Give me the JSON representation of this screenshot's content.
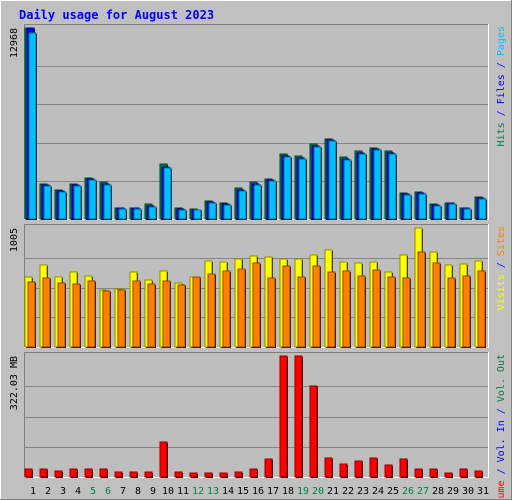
{
  "chart_data": {
    "type": "bar",
    "title": "Daily usage for August 2023",
    "colors": {
      "title": "#0000ff",
      "background": "#c0c0c0",
      "plot_bg": "#bebebe",
      "grid": "#848484",
      "frame_dark": "#808080",
      "frame_light": "#ffffff",
      "hits": "#008040",
      "files": "#0000ff",
      "pages": "#00c0ff",
      "visits": "#ffff00",
      "sites": "#ff8000",
      "kbin": "#ff0000",
      "kbout": "#ff0000",
      "weekend_label": "#008040",
      "weekday_label": "#000000"
    },
    "categories": [
      "1",
      "2",
      "3",
      "4",
      "5",
      "6",
      "7",
      "8",
      "9",
      "10",
      "11",
      "12",
      "13",
      "14",
      "15",
      "16",
      "17",
      "18",
      "19",
      "20",
      "21",
      "22",
      "23",
      "24",
      "25",
      "26",
      "27",
      "28",
      "29",
      "30",
      "31"
    ],
    "weekend_days": [
      5,
      6,
      12,
      13,
      19,
      20,
      26,
      27
    ],
    "panels": [
      {
        "id": "top",
        "max_label": "12968",
        "max": 12968,
        "legend": [
          {
            "text": "Hits",
            "color": "#008040"
          },
          {
            "text": " / ",
            "color": "#0000ff"
          },
          {
            "text": "Files",
            "color": "#0000ff"
          },
          {
            "text": " / ",
            "color": "#0000ff"
          },
          {
            "text": "Pages",
            "color": "#00c0ff"
          }
        ],
        "series": [
          {
            "name": "Hits",
            "color": "#008040",
            "values": [
              12968,
              2390,
              2000,
              2390,
              2760,
              2480,
              780,
              780,
              1020,
              3750,
              740,
              650,
              1250,
              1070,
              2090,
              2490,
              2720,
              4390,
              4290,
              5100,
              5450,
              4230,
              4600,
              4850,
              4610,
              1780,
              1840,
              1030,
              1110,
              760,
              1460
            ]
          },
          {
            "name": "Files",
            "color": "#0000ff",
            "values": [
              12968,
              2300,
              1930,
              2300,
              2690,
              2410,
              760,
              760,
              880,
              3560,
              700,
              630,
              1180,
              1000,
              1980,
              2390,
              2650,
              4300,
              4150,
              4960,
              5330,
              4100,
              4500,
              4750,
              4490,
              1720,
              1780,
              980,
              1080,
              740,
              1400
            ]
          },
          {
            "name": "Pages",
            "color": "#00c0ff",
            "values": [
              12600,
              2230,
              1850,
              2230,
              2620,
              2330,
              690,
              700,
              820,
              3490,
              640,
              580,
              1110,
              940,
              1910,
              2330,
              2590,
              4230,
              4100,
              4890,
              5270,
              4030,
              4420,
              4680,
              4420,
              1650,
              1700,
              910,
              1010,
              670,
              1330
            ]
          }
        ]
      },
      {
        "id": "middle",
        "max_label": "1005",
        "max": 1005,
        "legend": [
          {
            "text": "Visits",
            "color": "#ffff00"
          },
          {
            "text": " / ",
            "color": "#0000ff"
          },
          {
            "text": "Sites",
            "color": "#ff8000"
          }
        ],
        "series": [
          {
            "name": "Visits",
            "color": "#ffff00",
            "values": [
              590,
              690,
              590,
              630,
              600,
              480,
              490,
              630,
              570,
              640,
              540,
              590,
              730,
              720,
              740,
              770,
              760,
              740,
              740,
              780,
              820,
              720,
              710,
              720,
              630,
              780,
              1005,
              800,
              690,
              700,
              730
            ]
          },
          {
            "name": "Sites",
            "color": "#ff8000",
            "values": [
              550,
              580,
              540,
              530,
              560,
              470,
              480,
              560,
              530,
              560,
              520,
              590,
              620,
              640,
              660,
              710,
              580,
              680,
              590,
              680,
              630,
              640,
              600,
              650,
              590,
              580,
              800,
              710,
              580,
              600,
              640
            ]
          }
        ]
      },
      {
        "id": "bottom",
        "max_label": "322.03 MB",
        "max": 322.03,
        "legend": [
          {
            "text": "Volume",
            "color": "#ff0000"
          },
          {
            "text": " / ",
            "color": "#0000ff"
          },
          {
            "text": "Vol. In",
            "color": "#0000ff"
          },
          {
            "text": " / ",
            "color": "#0000ff"
          },
          {
            "text": "Vol. Out",
            "color": "#008040"
          }
        ],
        "series": [
          {
            "name": "Volume",
            "color": "#ff0000",
            "values": [
              20,
              20,
              17,
              22,
              22,
              22,
              12,
              12,
              12,
              93,
              13,
              11,
              11,
              11,
              12,
              21,
              49,
              322,
              322,
              242,
              51,
              35,
              42,
              50,
              33,
              47,
              20,
              20,
              11,
              20,
              17
            ]
          }
        ]
      }
    ]
  }
}
